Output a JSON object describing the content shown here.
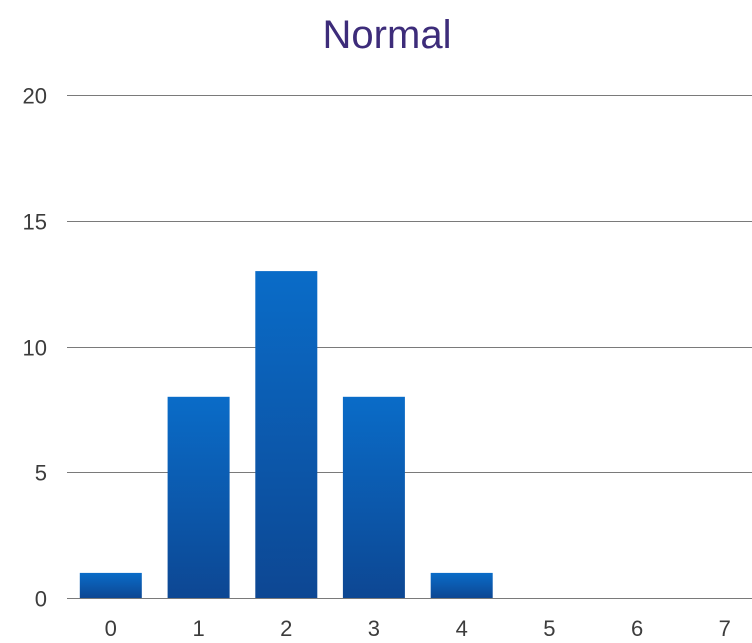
{
  "colors": {
    "title": "#3d2c7a",
    "bar_top": "#0a6cc8",
    "bar_bottom": "#0d4793",
    "grid": "#7a7a7a",
    "tick_text": "#3c3c3c"
  },
  "chart_data": {
    "type": "bar",
    "title": "Normal",
    "xlabel": "",
    "ylabel": "",
    "categories": [
      "0",
      "1",
      "2",
      "3",
      "4",
      "5",
      "6",
      "7"
    ],
    "values": [
      1,
      8,
      13,
      8,
      1,
      0,
      0,
      0
    ],
    "ylim": [
      0,
      20
    ],
    "yticks": [
      "0",
      "5",
      "10",
      "15",
      "20"
    ],
    "grid": true,
    "legend": "none"
  }
}
